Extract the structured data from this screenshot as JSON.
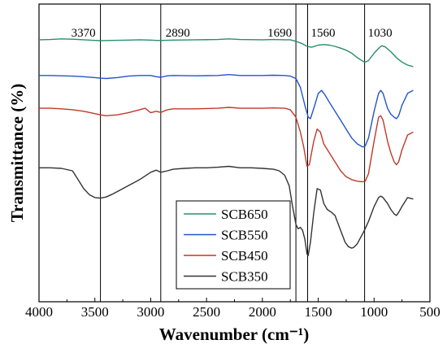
{
  "chart_data": {
    "type": "line",
    "title": "",
    "xlabel": "Wavenumber (cm⁻¹)",
    "ylabel": "Transmittance (%)",
    "xlim": [
      4000,
      500
    ],
    "ylim": [
      0,
      100
    ],
    "x_reversed": true,
    "y_ticks_shown": false,
    "xticks": [
      4000,
      3500,
      3000,
      2500,
      2000,
      1500,
      1000,
      500
    ],
    "xtick_labels": [
      "4000",
      "3500",
      "3000",
      "2500",
      "2000",
      "1500",
      "1000",
      "500"
    ],
    "reference_lines": [
      {
        "x": 3450,
        "label": "3370"
      },
      {
        "x": 2910,
        "label": "2890"
      },
      {
        "x": 1700,
        "label": "1690"
      },
      {
        "x": 1595,
        "label": "1560"
      },
      {
        "x": 1085,
        "label": "1030"
      }
    ],
    "legend": {
      "position": "bottom-center",
      "entries": [
        "SCB650",
        "SCB550",
        "SCB450",
        "SCB350"
      ]
    },
    "series": [
      {
        "name": "SCB650",
        "color": "#2a8f6a",
        "x": [
          4000,
          3900,
          3800,
          3700,
          3600,
          3500,
          3450,
          3350,
          3200,
          3100,
          3000,
          2950,
          2900,
          2800,
          2600,
          2400,
          2300,
          2200,
          2000,
          1900,
          1800,
          1750,
          1700,
          1650,
          1600,
          1560,
          1500,
          1450,
          1400,
          1350,
          1300,
          1250,
          1200,
          1150,
          1100,
          1080,
          1050,
          1000,
          950,
          930,
          900,
          850,
          800,
          750,
          700,
          650
        ],
        "y": [
          88.0,
          88.1,
          88.3,
          88.2,
          88.0,
          87.8,
          87.7,
          87.8,
          87.9,
          88.0,
          87.9,
          87.8,
          87.8,
          87.9,
          88.0,
          88.1,
          88.3,
          88.1,
          88.0,
          88.1,
          88.0,
          88.0,
          87.5,
          86.8,
          85.8,
          85.5,
          86.2,
          86.4,
          86.2,
          85.8,
          85.2,
          84.5,
          83.5,
          82.0,
          80.8,
          80.5,
          81.0,
          83.5,
          85.5,
          86.0,
          85.6,
          84.0,
          82.0,
          80.5,
          79.5,
          79.0
        ]
      },
      {
        "name": "SCB550",
        "color": "#2255cc",
        "x": [
          4000,
          3900,
          3800,
          3700,
          3600,
          3500,
          3450,
          3400,
          3300,
          3200,
          3100,
          3000,
          2950,
          2910,
          2850,
          2800,
          2600,
          2400,
          2300,
          2200,
          2000,
          1900,
          1800,
          1750,
          1700,
          1660,
          1620,
          1590,
          1570,
          1540,
          1500,
          1470,
          1440,
          1400,
          1350,
          1300,
          1250,
          1200,
          1150,
          1100,
          1080,
          1050,
          1000,
          960,
          940,
          920,
          880,
          850,
          820,
          800,
          780,
          750,
          700,
          650
        ],
        "y": [
          76.0,
          76.0,
          75.9,
          75.8,
          75.6,
          75.3,
          75.1,
          75.0,
          75.3,
          75.8,
          76.0,
          76.0,
          75.6,
          75.4,
          75.9,
          76.0,
          75.9,
          76.0,
          76.3,
          76.0,
          76.0,
          76.1,
          76.0,
          75.8,
          75.0,
          72.0,
          66.0,
          62.0,
          61.5,
          65.0,
          70.0,
          71.0,
          69.5,
          67.0,
          64.0,
          61.0,
          58.0,
          55.0,
          53.0,
          52.0,
          52.3,
          55.0,
          64.0,
          70.0,
          71.0,
          70.0,
          65.0,
          63.0,
          62.0,
          61.5,
          62.5,
          66.0,
          70.0,
          71.0
        ]
      },
      {
        "name": "SCB450",
        "color": "#c0392b",
        "x": [
          4000,
          3900,
          3800,
          3700,
          3600,
          3500,
          3450,
          3400,
          3300,
          3200,
          3100,
          3050,
          3000,
          2950,
          2910,
          2850,
          2800,
          2600,
          2400,
          2300,
          2200,
          2000,
          1900,
          1800,
          1750,
          1700,
          1660,
          1630,
          1600,
          1580,
          1560,
          1540,
          1510,
          1480,
          1450,
          1400,
          1350,
          1300,
          1250,
          1200,
          1150,
          1100,
          1080,
          1050,
          1000,
          960,
          940,
          920,
          880,
          850,
          820,
          800,
          780,
          750,
          700,
          650
        ],
        "y": [
          65.0,
          65.0,
          64.8,
          64.5,
          64.0,
          63.2,
          62.8,
          62.5,
          62.8,
          63.5,
          64.5,
          65.0,
          63.5,
          64.0,
          63.6,
          64.5,
          64.8,
          64.8,
          65.0,
          65.3,
          65.0,
          65.0,
          65.1,
          65.0,
          64.5,
          62.0,
          57.0,
          52.0,
          45.5,
          46.0,
          50.0,
          54.0,
          58.0,
          57.0,
          53.0,
          50.0,
          47.0,
          44.0,
          42.0,
          41.0,
          40.5,
          40.3,
          40.5,
          43.0,
          54.0,
          62.0,
          62.5,
          61.0,
          54.0,
          50.0,
          47.0,
          46.0,
          47.0,
          51.0,
          56.0,
          57.0
        ]
      },
      {
        "name": "SCB350",
        "color": "#333333",
        "x": [
          4000,
          3900,
          3800,
          3700,
          3650,
          3600,
          3550,
          3500,
          3450,
          3400,
          3350,
          3300,
          3200,
          3100,
          3000,
          2950,
          2910,
          2850,
          2800,
          2700,
          2600,
          2500,
          2400,
          2300,
          2200,
          2100,
          2000,
          1900,
          1850,
          1800,
          1760,
          1730,
          1700,
          1680,
          1660,
          1640,
          1620,
          1600,
          1590,
          1570,
          1540,
          1510,
          1480,
          1450,
          1420,
          1380,
          1350,
          1300,
          1260,
          1230,
          1200,
          1180,
          1150,
          1100,
          1080,
          1050,
          1000,
          960,
          940,
          920,
          880,
          850,
          820,
          800,
          780,
          750,
          700,
          650
        ],
        "y": [
          45.0,
          45.0,
          44.8,
          44.0,
          41.0,
          38.0,
          36.0,
          35.0,
          34.8,
          35.2,
          36.0,
          37.0,
          39.0,
          41.0,
          43.5,
          44.2,
          43.5,
          44.0,
          44.5,
          44.8,
          45.0,
          45.0,
          45.2,
          45.5,
          45.0,
          45.0,
          44.8,
          44.5,
          44.0,
          42.5,
          39.0,
          32.0,
          26.0,
          24.5,
          25.0,
          24.0,
          21.0,
          16.0,
          15.5,
          20.0,
          30.0,
          38.0,
          37.5,
          33.0,
          31.0,
          30.0,
          29.0,
          24.0,
          20.0,
          18.5,
          18.0,
          18.3,
          19.5,
          23.0,
          24.5,
          27.0,
          32.0,
          35.0,
          35.5,
          35.0,
          33.0,
          31.0,
          29.5,
          29.0,
          30.0,
          32.0,
          35.0,
          34.5
        ]
      }
    ]
  }
}
